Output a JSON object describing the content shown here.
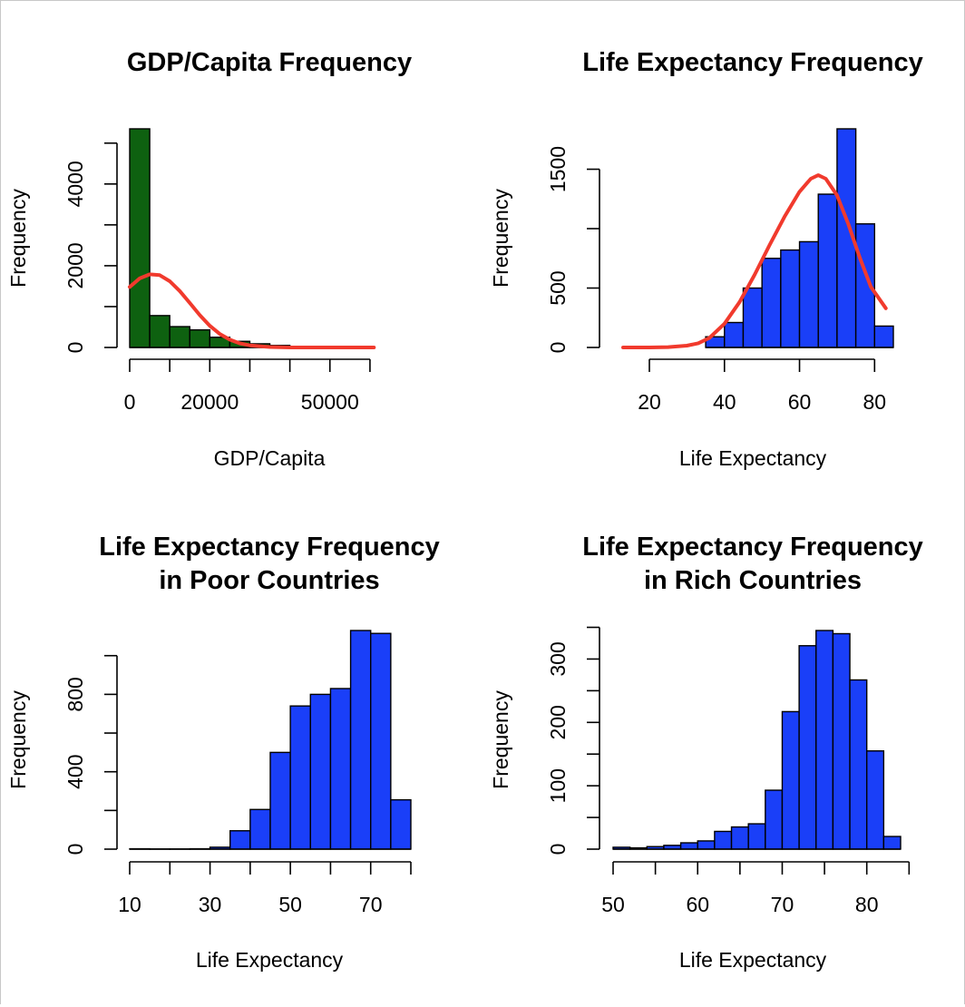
{
  "chart_data": [
    {
      "type": "bar",
      "title": "GDP/Capita Frequency",
      "xlabel": "GDP/Capita",
      "ylabel": "Frequency",
      "bin_edges": [
        0,
        5000,
        10000,
        15000,
        20000,
        25000,
        30000,
        35000,
        40000
      ],
      "values": [
        5350,
        780,
        510,
        430,
        250,
        150,
        90,
        50
      ],
      "bar_color": "#0e6110",
      "xlim": [
        0,
        65000
      ],
      "ylim": [
        0,
        5350
      ],
      "x_ticks": [
        0,
        10000,
        20000,
        30000,
        40000,
        50000,
        60000
      ],
      "x_tick_labels": [
        "0",
        "",
        "20000",
        "",
        "",
        "50000",
        ""
      ],
      "y_ticks": [
        0,
        1000,
        2000,
        3000,
        4000,
        5000
      ],
      "y_tick_labels": [
        "0",
        "",
        "2000",
        "",
        "4000",
        ""
      ],
      "curve": {
        "color": "#f13a2d",
        "x": [
          0,
          2500,
          5000,
          7500,
          10000,
          12500,
          15000,
          17500,
          20000,
          22500,
          25000,
          27500,
          30000,
          35000,
          40000,
          50000,
          61000
        ],
        "y": [
          1480,
          1690,
          1790,
          1770,
          1620,
          1380,
          1090,
          790,
          530,
          330,
          190,
          100,
          50,
          10,
          0,
          0,
          0
        ]
      }
    },
    {
      "type": "bar",
      "title": "Life Expectancy Frequency",
      "xlabel": "Life Expectancy",
      "ylabel": "Frequency",
      "bin_edges": [
        35,
        40,
        45,
        50,
        55,
        60,
        65,
        70,
        75,
        80,
        85
      ],
      "values": [
        90,
        210,
        500,
        750,
        820,
        890,
        1290,
        1840,
        1040,
        180
      ],
      "bar_color": "#1a3ff8",
      "xlim": [
        20,
        85
      ],
      "ylim": [
        0,
        1840
      ],
      "x_ticks": [
        20,
        40,
        60,
        80
      ],
      "x_tick_labels": [
        "20",
        "40",
        "60",
        "80"
      ],
      "y_ticks": [
        0,
        500,
        1000,
        1500
      ],
      "y_tick_labels": [
        "0",
        "500",
        "",
        "1500"
      ],
      "curve": {
        "color": "#f13a2d",
        "x": [
          13,
          20,
          25,
          30,
          33,
          36,
          40,
          44,
          48,
          52,
          56,
          60,
          63,
          65,
          67,
          70,
          73,
          76,
          79,
          83
        ],
        "y": [
          0,
          0,
          3,
          15,
          35,
          80,
          200,
          380,
          610,
          860,
          1100,
          1310,
          1420,
          1450,
          1420,
          1280,
          1040,
          760,
          510,
          330
        ]
      }
    },
    {
      "type": "bar",
      "title": "Life Expectancy Frequency\nin Poor Countries",
      "xlabel": "Life Expectancy",
      "ylabel": "Frequency",
      "bin_edges": [
        10,
        15,
        20,
        25,
        30,
        35,
        40,
        45,
        50,
        55,
        60,
        65,
        70,
        75,
        80
      ],
      "values": [
        2,
        1,
        1,
        2,
        10,
        95,
        205,
        500,
        740,
        800,
        830,
        1130,
        1115,
        255
      ],
      "bar_color": "#1a3ff8",
      "xlim": [
        10,
        80
      ],
      "ylim": [
        0,
        1130
      ],
      "x_ticks": [
        10,
        20,
        30,
        40,
        50,
        60,
        70,
        80
      ],
      "x_tick_labels": [
        "10",
        "",
        "30",
        "",
        "50",
        "",
        "70",
        ""
      ],
      "y_ticks": [
        0,
        200,
        400,
        600,
        800,
        1000
      ],
      "y_tick_labels": [
        "0",
        "",
        "400",
        "",
        "800",
        ""
      ]
    },
    {
      "type": "bar",
      "title": "Life Expectancy Frequency\nin Rich Countries",
      "xlabel": "Life Expectancy",
      "ylabel": "Frequency",
      "bin_edges": [
        50,
        52,
        54,
        56,
        58,
        60,
        62,
        64,
        66,
        68,
        70,
        72,
        74,
        76,
        78,
        80,
        82,
        84
      ],
      "values": [
        3,
        2,
        4,
        6,
        10,
        13,
        28,
        35,
        40,
        93,
        217,
        321,
        345,
        340,
        267,
        155,
        20
      ],
      "bar_color": "#1a3ff8",
      "xlim": [
        50,
        84
      ],
      "ylim": [
        0,
        345
      ],
      "x_ticks": [
        50,
        55,
        60,
        65,
        70,
        75,
        80,
        85
      ],
      "x_tick_labels": [
        "50",
        "",
        "60",
        "",
        "70",
        "",
        "80",
        ""
      ],
      "y_ticks": [
        0,
        50,
        100,
        150,
        200,
        250,
        300,
        350
      ],
      "y_tick_labels": [
        "0",
        "",
        "100",
        "",
        "200",
        "",
        "300",
        ""
      ]
    }
  ]
}
